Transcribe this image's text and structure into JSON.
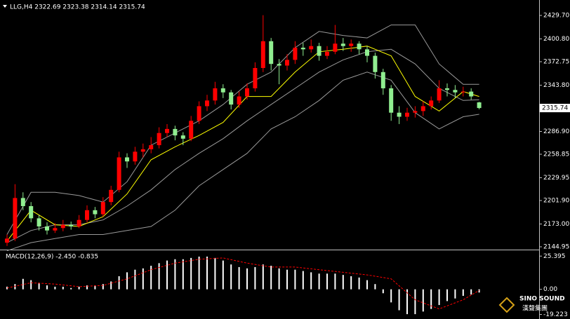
{
  "chart_data": [
    {
      "type": "candlestick",
      "title": "LLG,H4  2322.69 2323.38 2314.14 2315.74",
      "up_color": "#ff0000",
      "down_color": "#90ee90",
      "ohlc": [
        [
          2150,
          2160,
          2146,
          2155
        ],
        [
          2155,
          2222,
          2152,
          2205
        ],
        [
          2205,
          2212,
          2190,
          2195
        ],
        [
          2195,
          2200,
          2175,
          2180
        ],
        [
          2180,
          2184,
          2165,
          2170
        ],
        [
          2170,
          2175,
          2160,
          2165
        ],
        [
          2165,
          2174,
          2162,
          2168
        ],
        [
          2168,
          2178,
          2164,
          2172
        ],
        [
          2172,
          2176,
          2166,
          2170
        ],
        [
          2170,
          2184,
          2168,
          2178
        ],
        [
          2178,
          2196,
          2175,
          2190
        ],
        [
          2190,
          2194,
          2180,
          2185
        ],
        [
          2185,
          2206,
          2182,
          2200
        ],
        [
          2200,
          2220,
          2196,
          2215
        ],
        [
          2215,
          2262,
          2212,
          2255
        ],
        [
          2255,
          2260,
          2242,
          2250
        ],
        [
          2250,
          2268,
          2246,
          2262
        ],
        [
          2262,
          2272,
          2255,
          2265
        ],
        [
          2265,
          2280,
          2260,
          2270
        ],
        [
          2270,
          2292,
          2266,
          2285
        ],
        [
          2285,
          2296,
          2280,
          2290
        ],
        [
          2290,
          2294,
          2276,
          2282
        ],
        [
          2282,
          2286,
          2270,
          2278
        ],
        [
          2278,
          2306,
          2275,
          2300
        ],
        [
          2300,
          2324,
          2296,
          2318
        ],
        [
          2318,
          2332,
          2312,
          2325
        ],
        [
          2325,
          2348,
          2320,
          2340
        ],
        [
          2340,
          2345,
          2328,
          2335
        ],
        [
          2335,
          2338,
          2314,
          2320
        ],
        [
          2320,
          2336,
          2316,
          2330
        ],
        [
          2330,
          2346,
          2326,
          2340
        ],
        [
          2340,
          2372,
          2336,
          2365
        ],
        [
          2365,
          2430,
          2360,
          2398
        ],
        [
          2398,
          2402,
          2362,
          2370
        ],
        [
          2370,
          2376,
          2345,
          2368
        ],
        [
          2368,
          2382,
          2362,
          2375
        ],
        [
          2375,
          2398,
          2370,
          2390
        ],
        [
          2390,
          2396,
          2380,
          2388
        ],
        [
          2388,
          2400,
          2384,
          2392
        ],
        [
          2392,
          2396,
          2374,
          2380
        ],
        [
          2380,
          2392,
          2376,
          2385
        ],
        [
          2385,
          2418,
          2382,
          2395
        ],
        [
          2395,
          2402,
          2386,
          2392
        ],
        [
          2392,
          2400,
          2385,
          2395
        ],
        [
          2395,
          2398,
          2382,
          2388
        ],
        [
          2388,
          2392,
          2372,
          2380
        ],
        [
          2380,
          2384,
          2352,
          2360
        ],
        [
          2360,
          2364,
          2332,
          2340
        ],
        [
          2340,
          2344,
          2300,
          2310
        ],
        [
          2310,
          2318,
          2296,
          2305
        ],
        [
          2305,
          2316,
          2300,
          2310
        ],
        [
          2310,
          2318,
          2304,
          2312
        ],
        [
          2312,
          2324,
          2306,
          2318
        ],
        [
          2318,
          2330,
          2314,
          2325
        ],
        [
          2325,
          2350,
          2322,
          2340
        ],
        [
          2340,
          2346,
          2330,
          2338
        ],
        [
          2338,
          2344,
          2328,
          2335
        ],
        [
          2335,
          2342,
          2330,
          2336
        ],
        [
          2336,
          2340,
          2326,
          2330
        ],
        [
          2322.69,
          2323.38,
          2314.14,
          2315.74
        ]
      ],
      "series": [
        {
          "color": "#9a9a9a",
          "x": [
            0,
            3,
            6,
            9,
            12,
            15,
            18,
            21,
            24,
            27,
            30,
            33,
            36,
            39,
            42,
            45,
            48,
            51,
            54,
            57,
            59
          ],
          "values": [
            2160,
            2212,
            2212,
            2208,
            2200,
            2225,
            2270,
            2285,
            2300,
            2320,
            2345,
            2360,
            2390,
            2410,
            2405,
            2402,
            2418,
            2418,
            2370,
            2345,
            2345
          ]
        },
        {
          "color": "#9a9a9a",
          "x": [
            0,
            3,
            6,
            9,
            12,
            15,
            18,
            21,
            24,
            27,
            30,
            33,
            36,
            39,
            42,
            45,
            48,
            51,
            54,
            57,
            59
          ],
          "values": [
            2150,
            2165,
            2172,
            2172,
            2178,
            2195,
            2215,
            2240,
            2260,
            2278,
            2300,
            2320,
            2340,
            2360,
            2375,
            2385,
            2388,
            2370,
            2340,
            2325,
            2326
          ]
        },
        {
          "color": "#9a9a9a",
          "x": [
            0,
            3,
            6,
            9,
            12,
            15,
            18,
            21,
            24,
            27,
            30,
            33,
            36,
            39,
            42,
            45,
            48,
            51,
            54,
            57,
            59
          ],
          "values": [
            2140,
            2150,
            2155,
            2160,
            2160,
            2165,
            2170,
            2190,
            2220,
            2240,
            2260,
            2290,
            2305,
            2325,
            2350,
            2360,
            2350,
            2310,
            2290,
            2305,
            2308
          ]
        },
        {
          "color": "#ffff00",
          "x": [
            0,
            3,
            6,
            9,
            12,
            15,
            18,
            21,
            24,
            27,
            30,
            33,
            36,
            39,
            42,
            45,
            48,
            51,
            54,
            57,
            59
          ],
          "values": [
            2152,
            2190,
            2172,
            2170,
            2182,
            2210,
            2252,
            2268,
            2282,
            2298,
            2330,
            2330,
            2360,
            2385,
            2388,
            2392,
            2380,
            2330,
            2312,
            2336,
            2330
          ]
        }
      ],
      "ylim": [
        2142.35,
        2448.7
      ],
      "yticks": [
        {
          "value": 2429.7,
          "label": "2429.70"
        },
        {
          "value": 2400.8,
          "label": "2400.80"
        },
        2372.75,
        {
          "value": 2343.8,
          "label": "2343.80"
        },
        {
          "value": 2286.9,
          "label": "2286.90"
        },
        2258.85,
        2229.95,
        {
          "value": 2201.9,
          "label": "2201.90"
        },
        {
          "value": 2173,
          "label": "2173.00"
        },
        2144.95
      ],
      "current_price": 2315.74
    },
    {
      "type": "macd",
      "title": "MACD(12,26,9) -2.450 -0.835",
      "color": "#ffffff",
      "values": [
        2,
        4,
        8,
        7,
        5,
        3,
        2,
        2,
        1,
        2,
        3,
        3,
        4,
        6,
        10,
        13,
        15,
        16,
        18,
        20,
        22,
        23,
        23,
        24,
        25,
        25,
        24,
        22,
        19,
        17,
        16,
        17,
        19,
        18,
        16,
        15,
        15,
        14,
        13,
        12,
        12,
        12,
        11,
        10,
        9,
        7,
        4,
        -3,
        -10,
        -16,
        -19,
        -19,
        -17,
        -15,
        -12,
        -9,
        -7,
        -5,
        -4,
        -2.45
      ],
      "series": [
        {
          "color": "#ff0000",
          "x": [
            0,
            3,
            6,
            9,
            12,
            15,
            18,
            21,
            24,
            27,
            30,
            33,
            36,
            39,
            42,
            45,
            48,
            51,
            54,
            57,
            59
          ],
          "values": [
            1,
            5,
            4,
            2,
            3,
            8,
            15,
            20,
            23,
            24,
            20,
            17,
            17,
            15,
            13,
            11,
            8,
            -8,
            -15,
            -8,
            -0.835
          ]
        }
      ],
      "ylim": [
        -22.7,
        29.3
      ],
      "yticks": [
        25.395,
        {
          "value": 0,
          "label": "0.00"
        },
        -19.223
      ]
    }
  ],
  "logo": {
    "line1": "SINO SOUND",
    "line2": "漢聲集團"
  }
}
